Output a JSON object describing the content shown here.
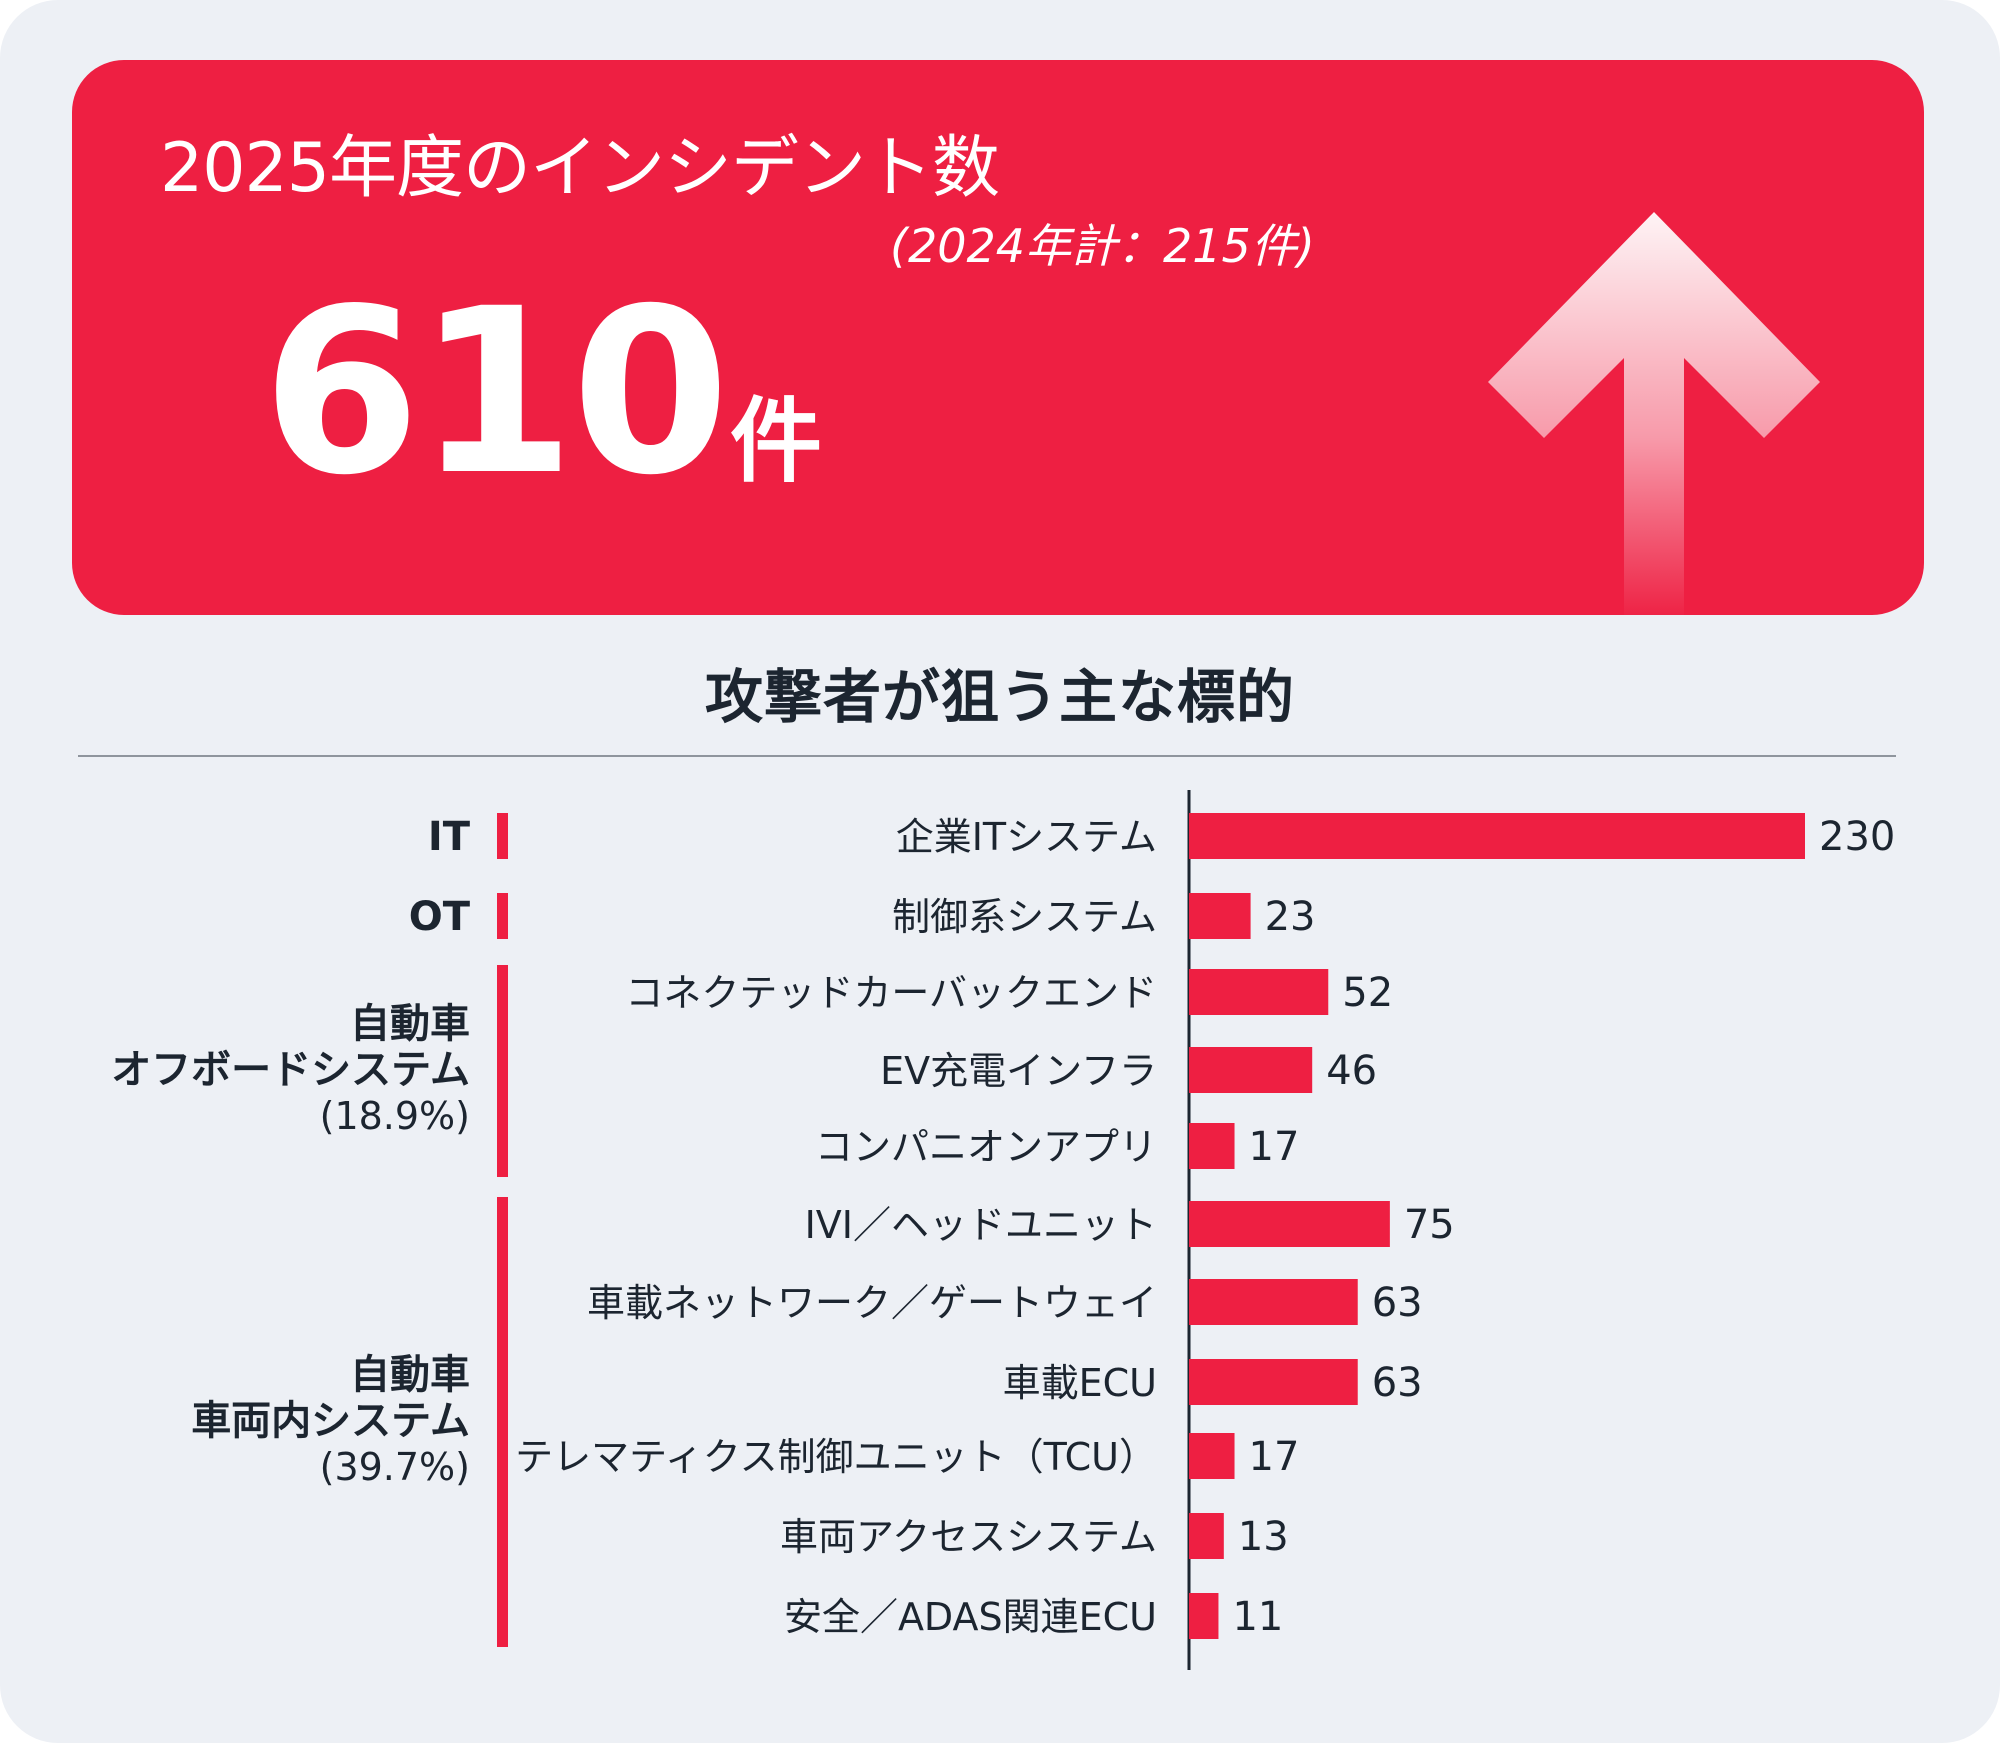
{
  "hero": {
    "title": "2025年度のインシデント数",
    "previous": "(2024年計：215件)",
    "number": "610",
    "unit": "件"
  },
  "section_title": "攻撃者が狙う主な標的",
  "colors": {
    "accent": "#ee1f42",
    "background": "#edf0f5",
    "text": "#1c2530"
  },
  "chart_data": {
    "type": "bar",
    "orientation": "horizontal",
    "categories": [
      "企業ITシステム",
      "制御系システム",
      "コネクテッドカーバックエンド",
      "EV充電インフラ",
      "コンパニオンアプリ",
      "IVI／ヘッドユニット",
      "車載ネットワーク／ゲートウェイ",
      "車載ECU",
      "テレマティクス制御ユニット（TCU）",
      "車両アクセスシステム",
      "安全／ADAS関連ECU"
    ],
    "values": [
      230,
      23,
      52,
      46,
      17,
      75,
      63,
      63,
      17,
      13,
      11
    ],
    "xlim": [
      0,
      230
    ],
    "groups": [
      {
        "label_lines": [
          "IT"
        ],
        "pct": "",
        "start": 0,
        "end": 0
      },
      {
        "label_lines": [
          "OT"
        ],
        "pct": "",
        "start": 1,
        "end": 1
      },
      {
        "label_lines": [
          "自動車",
          "オフボードシステム"
        ],
        "pct": "(18.9%)",
        "start": 2,
        "end": 4
      },
      {
        "label_lines": [
          "自動車",
          "車両内システム"
        ],
        "pct": "(39.7%)",
        "start": 5,
        "end": 10
      }
    ]
  }
}
